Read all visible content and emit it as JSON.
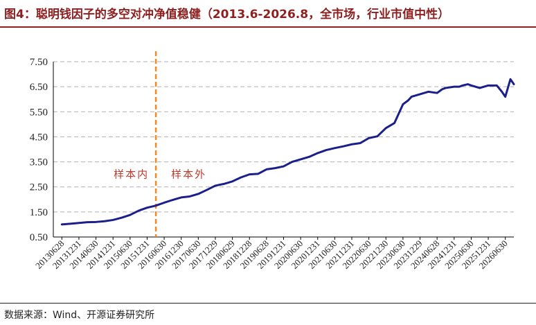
{
  "header": {
    "title": "图4：聪明钱因子的多空对冲净值稳健（2013.6-2026.8，全市场，行业市值中性）"
  },
  "footer": {
    "source": "数据来源：Wind、开源证券研究所"
  },
  "colors": {
    "title": "#8c1f1f",
    "line": "#1b1f8a",
    "divider": "#f08a24",
    "annotation": "#c0392b",
    "grid": "#b0b0b0"
  },
  "chart_data": {
    "type": "line",
    "title": "",
    "xlabel": "",
    "ylabel": "",
    "ylim": [
      0.5,
      7.5
    ],
    "yticks": [
      "0.50",
      "1.50",
      "2.50",
      "3.50",
      "4.50",
      "5.50",
      "6.50",
      "7.50"
    ],
    "ytick_values": [
      0.5,
      1.5,
      2.5,
      3.5,
      4.5,
      5.5,
      6.5,
      7.5
    ],
    "grid": "horizontal dashed",
    "legend": "none",
    "xticks": [
      "20130628",
      "20131231",
      "20140630",
      "20141231",
      "20150630",
      "20151231",
      "20160630",
      "20161230",
      "20170630",
      "20171229",
      "20180629",
      "20181228",
      "20190628",
      "20191231",
      "20200630",
      "20201231",
      "20210630",
      "20211231",
      "20220630",
      "20221230",
      "20230630",
      "20231229",
      "20240628",
      "20241231",
      "20250630",
      "20251231",
      "20260630"
    ],
    "divider": {
      "at": "20160630",
      "style": "dashed"
    },
    "annotations": [
      {
        "text": "样本内",
        "side": "left-of-divider"
      },
      {
        "text": "样本外",
        "side": "right-of-divider"
      }
    ],
    "series": [
      {
        "x": [
          0,
          0.5,
          1,
          1.5,
          2,
          2.5,
          3,
          3.5,
          4,
          4.5,
          5,
          5.5,
          6,
          6.5,
          7,
          7.5,
          8,
          8.5,
          9,
          9.5,
          10,
          10.5,
          11,
          11.5,
          12,
          12.5,
          13,
          13.5,
          14,
          14.5,
          15,
          15.5,
          16,
          16.5,
          17,
          17.5,
          18,
          18.5,
          19,
          19.5,
          20,
          20.3,
          20.5,
          21,
          21.5,
          22,
          22.3,
          22.5,
          23,
          23.3,
          23.5,
          23.8,
          24,
          24.5,
          25,
          25.5,
          25.8,
          26,
          26.3,
          26.5
        ],
        "values": [
          1.0,
          1.03,
          1.06,
          1.09,
          1.1,
          1.13,
          1.18,
          1.27,
          1.38,
          1.55,
          1.67,
          1.75,
          1.87,
          1.98,
          2.08,
          2.12,
          2.22,
          2.38,
          2.55,
          2.62,
          2.72,
          2.88,
          3.0,
          3.02,
          3.2,
          3.25,
          3.32,
          3.5,
          3.6,
          3.7,
          3.85,
          3.97,
          4.05,
          4.12,
          4.2,
          4.25,
          4.45,
          4.52,
          4.85,
          5.05,
          5.8,
          5.95,
          6.1,
          6.2,
          6.3,
          6.25,
          6.4,
          6.45,
          6.5,
          6.5,
          6.55,
          6.6,
          6.55,
          6.45,
          6.55,
          6.55,
          6.3,
          6.1,
          6.8,
          6.6
        ]
      }
    ]
  }
}
